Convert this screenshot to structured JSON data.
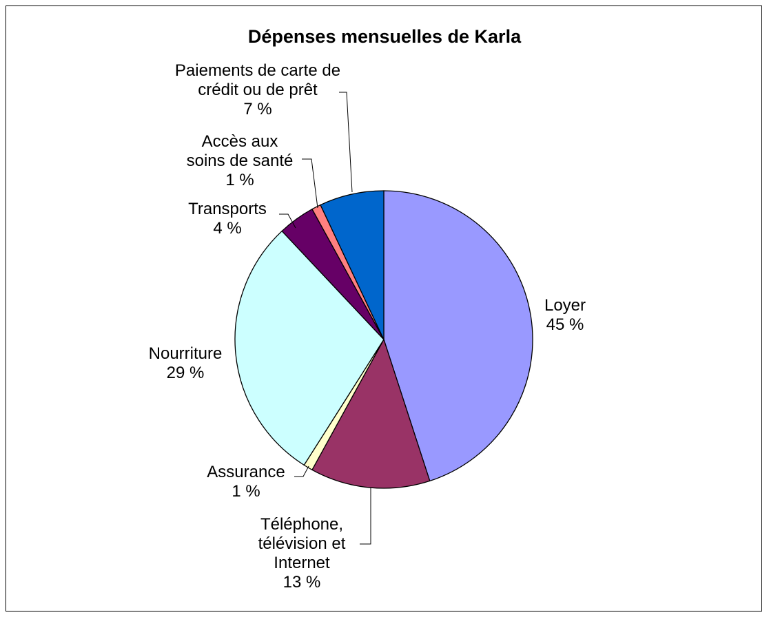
{
  "chart_data": {
    "type": "pie",
    "title": "Dépenses mensuelles de Karla",
    "slices": [
      {
        "name": "Loyer",
        "value": 45,
        "label": [
          "Loyer",
          "45 %"
        ],
        "color": "#9999FF"
      },
      {
        "name": "Téléphone, télévision et Internet",
        "value": 13,
        "label": [
          "Téléphone,",
          "télévision et",
          "Internet",
          "13 %"
        ],
        "color": "#993366"
      },
      {
        "name": "Assurance",
        "value": 1,
        "label": [
          "Assurance",
          "1 %"
        ],
        "color": "#FFFFCC"
      },
      {
        "name": "Nourriture",
        "value": 29,
        "label": [
          "Nourriture",
          "29 %"
        ],
        "color": "#CCFFFF"
      },
      {
        "name": "Transports",
        "value": 4,
        "label": [
          "Transports",
          "4 %"
        ],
        "color": "#660066"
      },
      {
        "name": "Accès aux soins de santé",
        "value": 1,
        "label": [
          "Accès aux",
          "soins de santé",
          "1 %"
        ],
        "color": "#FF8080"
      },
      {
        "name": "Paiements de carte de crédit ou de prêt",
        "value": 7,
        "label": [
          "Paiements de carte de",
          "crédit ou de prêt",
          "7 %"
        ],
        "color": "#0066CC"
      }
    ],
    "legend": "none"
  }
}
